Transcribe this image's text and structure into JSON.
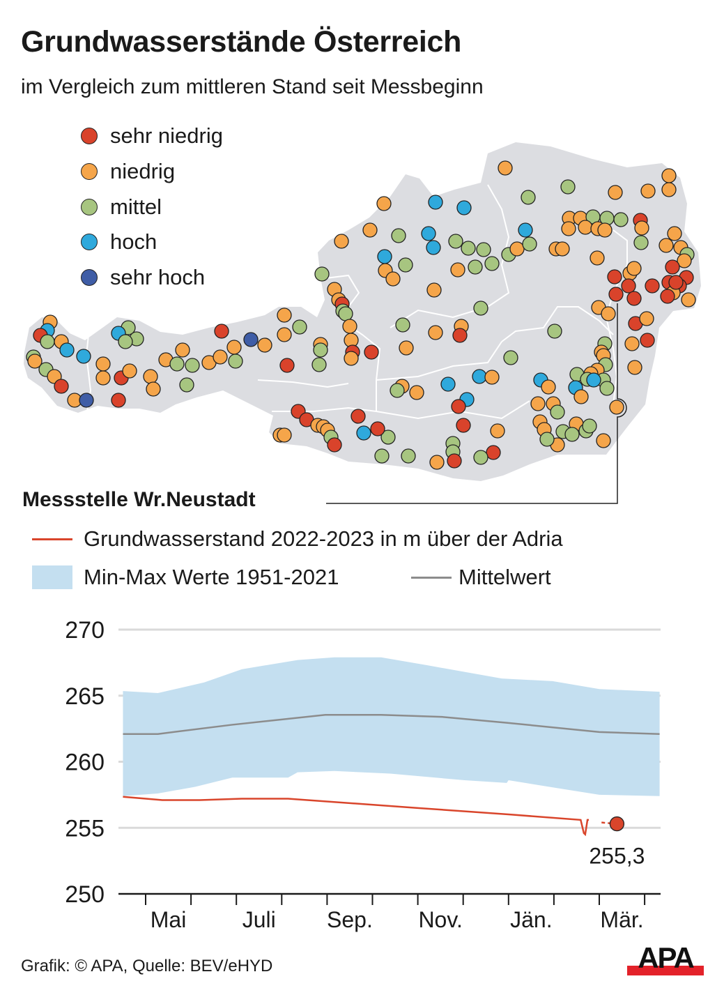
{
  "title": "Grundwasserstände Österreich",
  "subtitle": "im Vergleich zum mittleren Stand seit Messbeginn",
  "map_legend": [
    {
      "label": "sehr niedrig",
      "color": "#d9432b"
    },
    {
      "label": "niedrig",
      "color": "#f5a54a"
    },
    {
      "label": "mittel",
      "color": "#a7c580"
    },
    {
      "label": "hoch",
      "color": "#2fa9dc"
    },
    {
      "label": "sehr hoch",
      "color": "#3f5da6"
    }
  ],
  "station_title": "Messstelle Wr.Neustadt",
  "chart_legend": {
    "actual": "Grundwasserstand 2022-2023 in m über der Adria",
    "band": "Min-Max Werte 1951-2021",
    "mean": "Mittelwert"
  },
  "footer": "Grafik: © APA, Quelle: BEV/eHYD",
  "logo_text": "APA",
  "colors": {
    "band": "#c4dff0",
    "mean": "#8c8c8c",
    "actual": "#d9452b",
    "map": "#dcdde1"
  },
  "chart_data": {
    "type": "line",
    "title": "Messstelle Wr.Neustadt",
    "xlabel": "",
    "ylabel": "m über der Adria",
    "ylim": [
      250,
      270
    ],
    "yticks": [
      "270",
      "265",
      "260",
      "255",
      "250"
    ],
    "yticks_values": [
      270,
      265,
      260,
      255,
      250
    ],
    "x_unit": "months since 1 May 2022",
    "xlim": [
      -0.6,
      11.5
    ],
    "month_labels": [
      {
        "label": "Mai",
        "x": 0.5
      },
      {
        "label": "Juli",
        "x": 2.5
      },
      {
        "label": "Sep.",
        "x": 4.5
      },
      {
        "label": "Nov.",
        "x": 6.5
      },
      {
        "label": "Jän.",
        "x": 8.5
      },
      {
        "label": "Mär.",
        "x": 10.5
      }
    ],
    "month_ticks": [
      0,
      1,
      2,
      3,
      4,
      5,
      6,
      7,
      8,
      9,
      10,
      11
    ],
    "series": [
      {
        "name": "Max 1951-2021",
        "x": [
          -0.5,
          0.27,
          1.29,
          2.12,
          3.35,
          4.16,
          5.19,
          6.21,
          7.85,
          8.97,
          10.0,
          11.33
        ],
        "y": [
          265.35,
          265.2,
          266.0,
          267.0,
          267.7,
          267.9,
          267.9,
          267.3,
          266.3,
          266.1,
          265.5,
          265.3
        ]
      },
      {
        "name": "Min 1951-2021",
        "x": [
          -0.5,
          0.27,
          1.09,
          1.91,
          3.14,
          3.35,
          4.16,
          5.39,
          7.03,
          7.96,
          8.0,
          9.08,
          10.0,
          11.33
        ],
        "y": [
          257.4,
          257.6,
          258.1,
          258.8,
          258.8,
          259.2,
          259.3,
          259.1,
          258.6,
          258.4,
          258.6,
          258.0,
          257.5,
          257.4
        ]
      },
      {
        "name": "Mittelwert",
        "x": [
          -0.5,
          0.27,
          1.91,
          3.96,
          5.19,
          6.52,
          7.96,
          10.0,
          11.33
        ],
        "y": [
          262.1,
          262.1,
          262.8,
          263.55,
          263.55,
          263.4,
          262.95,
          262.25,
          262.1
        ]
      },
      {
        "name": "Grundwasserstand 2022-2023",
        "x": [
          -0.5,
          0.37,
          1.19,
          2.12,
          3.14,
          6.0,
          8.05,
          9.59,
          9.66,
          9.69,
          9.74,
          9.77
        ],
        "y": [
          257.35,
          257.1,
          257.1,
          257.2,
          257.2,
          256.5,
          256.0,
          255.6,
          254.6,
          254.5,
          255.6,
          255.6
        ]
      },
      {
        "name": "Grundwasserstand 2022-2023 (dashed end)",
        "x": [
          10.05,
          10.39
        ],
        "y": [
          255.4,
          255.3
        ]
      }
    ],
    "last_value": {
      "x": 10.39,
      "y": 255.3,
      "label": "255,3"
    }
  }
}
